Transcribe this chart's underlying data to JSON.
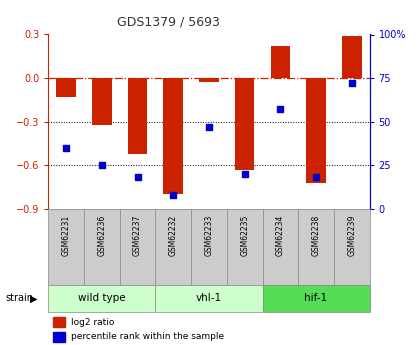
{
  "title": "GDS1379 / 5693",
  "samples": [
    "GSM62231",
    "GSM62236",
    "GSM62237",
    "GSM62232",
    "GSM62233",
    "GSM62235",
    "GSM62234",
    "GSM62238",
    "GSM62239"
  ],
  "log2_ratio": [
    -0.13,
    -0.32,
    -0.52,
    -0.8,
    -0.03,
    -0.63,
    0.22,
    -0.72,
    0.29
  ],
  "percentile_rank": [
    35,
    25,
    18,
    8,
    47,
    20,
    57,
    18,
    72
  ],
  "groups": [
    {
      "label": "wild type",
      "start": 0,
      "end": 3,
      "color": "#ccffcc"
    },
    {
      "label": "vhl-1",
      "start": 3,
      "end": 6,
      "color": "#ccffcc"
    },
    {
      "label": "hif-1",
      "start": 6,
      "end": 9,
      "color": "#55dd55"
    }
  ],
  "ylim_left": [
    -0.9,
    0.3
  ],
  "ylim_right": [
    0,
    100
  ],
  "yticks_left": [
    0.3,
    0.0,
    -0.3,
    -0.6,
    -0.9
  ],
  "yticks_right": [
    100,
    75,
    50,
    25,
    0
  ],
  "ytick_labels_right": [
    "100%",
    "75",
    "50",
    "25",
    "0"
  ],
  "bar_color": "#cc2200",
  "dot_color": "#0000cc",
  "hline_color": "#cc2200",
  "background_color": "#ffffff"
}
